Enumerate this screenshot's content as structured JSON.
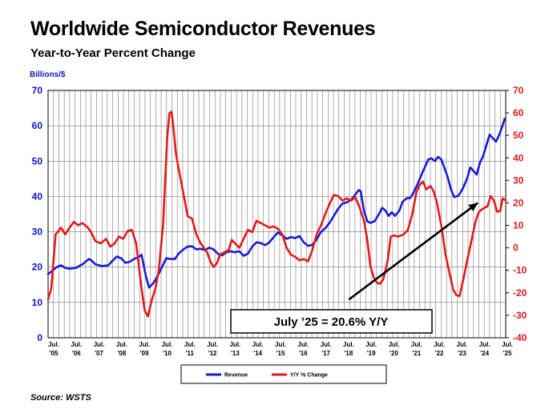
{
  "chart_data": {
    "type": "line",
    "title": "Worldwide Semiconductor Revenues",
    "subtitle": "Year-to-Year Percent Change",
    "ylabel": "Billions/$",
    "ylim": [
      0,
      70
    ],
    "y2lim": [
      -40,
      70
    ],
    "yticks": [
      0,
      10,
      20,
      30,
      40,
      50,
      60,
      70
    ],
    "y2ticks": [
      -40,
      -30,
      -20,
      -10,
      0,
      10,
      20,
      30,
      40,
      50,
      60,
      70
    ],
    "y2tick_labels": [
      "-40",
      "-30",
      "-20",
      "-10",
      "0",
      "10",
      "20",
      "30",
      "40",
      "50",
      "60",
      "70"
    ],
    "xtick_labels": [
      [
        "Jul.",
        "'05"
      ],
      [
        "Jul.",
        "'06"
      ],
      [
        "Jul.",
        "'07"
      ],
      [
        "Jul.",
        "'08"
      ],
      [
        "Jul.",
        "'09"
      ],
      [
        "Jul.",
        "'10"
      ],
      [
        "Jul.",
        "'11"
      ],
      [
        "Jul.",
        "'12"
      ],
      [
        "Jul.",
        "'13"
      ],
      [
        "Jul.",
        "'14"
      ],
      [
        "Jul.",
        "'15"
      ],
      [
        "Jul.",
        "'16"
      ],
      [
        "Jul.",
        "'17"
      ],
      [
        "Jul.",
        "'18"
      ],
      [
        "Jul.",
        "'19"
      ],
      [
        "Jul.",
        "'20"
      ],
      [
        "Jul.",
        "'21"
      ],
      [
        "Jul.",
        "'22"
      ],
      [
        "Jul.",
        "'23"
      ],
      [
        "Jul.",
        "'24"
      ],
      [
        "Jul.",
        "'25"
      ]
    ],
    "grid": true,
    "legend_position": "bottom",
    "source": "Source: WSTS",
    "annotation": "July ’25 = 20.6% Y/Y",
    "trend_arrow": {
      "from": [
        2019.0,
        -23
      ],
      "to": [
        2025.0,
        20
      ]
    },
    "series": [
      {
        "name": "Revenue",
        "axis": "left",
        "color": "#1a1ad6",
        "points": [
          [
            2005.0,
            18
          ],
          [
            2005.2,
            19
          ],
          [
            2005.4,
            20
          ],
          [
            2005.6,
            20.5
          ],
          [
            2005.8,
            19.8
          ],
          [
            2006.0,
            19.5
          ],
          [
            2006.3,
            19.8
          ],
          [
            2006.6,
            20.8
          ],
          [
            2006.9,
            22.3
          ],
          [
            2007.0,
            22
          ],
          [
            2007.2,
            20.8
          ],
          [
            2007.5,
            20.3
          ],
          [
            2007.8,
            20.5
          ],
          [
            2008.0,
            21.8
          ],
          [
            2008.2,
            23
          ],
          [
            2008.4,
            22.5
          ],
          [
            2008.6,
            21.2
          ],
          [
            2008.8,
            21.5
          ],
          [
            2009.0,
            22.3
          ],
          [
            2009.2,
            22.8
          ],
          [
            2009.35,
            23.5
          ],
          [
            2009.55,
            17.5
          ],
          [
            2009.7,
            14.2
          ],
          [
            2009.9,
            15.5
          ],
          [
            2010.1,
            17.5
          ],
          [
            2010.3,
            20
          ],
          [
            2010.5,
            22.5
          ],
          [
            2010.7,
            22.3
          ],
          [
            2010.9,
            22.3
          ],
          [
            2011.1,
            24
          ],
          [
            2011.3,
            25
          ],
          [
            2011.5,
            25.8
          ],
          [
            2011.7,
            25.9
          ],
          [
            2011.9,
            25
          ],
          [
            2012.1,
            25.2
          ],
          [
            2012.3,
            24.8
          ],
          [
            2012.5,
            25.5
          ],
          [
            2012.7,
            25
          ],
          [
            2012.9,
            23.8
          ],
          [
            2013.1,
            23.3
          ],
          [
            2013.3,
            24.2
          ],
          [
            2013.5,
            24.5
          ],
          [
            2013.7,
            24.2
          ],
          [
            2013.9,
            24.5
          ],
          [
            2014.1,
            23.2
          ],
          [
            2014.3,
            23.8
          ],
          [
            2014.5,
            25.8
          ],
          [
            2014.7,
            27
          ],
          [
            2014.9,
            26.8
          ],
          [
            2015.1,
            26.2
          ],
          [
            2015.3,
            27
          ],
          [
            2015.5,
            28.5
          ],
          [
            2015.7,
            29.8
          ],
          [
            2015.9,
            29
          ],
          [
            2016.1,
            28
          ],
          [
            2016.3,
            28.5
          ],
          [
            2016.5,
            28.2
          ],
          [
            2016.7,
            28.8
          ],
          [
            2016.9,
            27
          ],
          [
            2017.1,
            26
          ],
          [
            2017.3,
            26.3
          ],
          [
            2017.5,
            27.8
          ],
          [
            2017.7,
            30
          ],
          [
            2017.9,
            31
          ],
          [
            2018.1,
            32.5
          ],
          [
            2018.3,
            34.5
          ],
          [
            2018.5,
            36.5
          ],
          [
            2018.7,
            38
          ],
          [
            2018.9,
            38.3
          ],
          [
            2019.1,
            39
          ],
          [
            2019.3,
            40.5
          ],
          [
            2019.45,
            41.8
          ],
          [
            2019.55,
            41.5
          ],
          [
            2019.7,
            36
          ],
          [
            2019.85,
            33
          ],
          [
            2020.0,
            32.5
          ],
          [
            2020.2,
            33
          ],
          [
            2020.4,
            35
          ],
          [
            2020.55,
            36.8
          ],
          [
            2020.7,
            36
          ],
          [
            2020.85,
            34.5
          ],
          [
            2021.0,
            35.5
          ],
          [
            2021.15,
            34.5
          ],
          [
            2021.35,
            36
          ],
          [
            2021.5,
            38.5
          ],
          [
            2021.7,
            39.5
          ],
          [
            2021.85,
            39.5
          ],
          [
            2022.0,
            41
          ],
          [
            2022.2,
            43.5
          ],
          [
            2022.4,
            46.5
          ],
          [
            2022.55,
            48.5
          ],
          [
            2022.7,
            50.5
          ],
          [
            2022.85,
            50.8
          ],
          [
            2023.0,
            50
          ],
          [
            2023.15,
            51.2
          ],
          [
            2023.3,
            50.5
          ],
          [
            2023.45,
            48
          ],
          [
            2023.6,
            45.5
          ],
          [
            2023.75,
            42
          ],
          [
            2023.9,
            39.8
          ],
          [
            2024.1,
            40.2
          ],
          [
            2024.3,
            42.2
          ],
          [
            2024.5,
            45
          ],
          [
            2024.65,
            48.2
          ],
          [
            2024.8,
            47.2
          ],
          [
            2024.95,
            46.2
          ],
          [
            2025.1,
            49.5
          ],
          [
            2025.25,
            51.5
          ],
          [
            2025.4,
            54.5
          ],
          [
            2025.55,
            57.5
          ],
          [
            2025.7,
            56.5
          ],
          [
            2025.85,
            55.5
          ],
          [
            2026.0,
            57.5
          ],
          [
            2026.15,
            60
          ],
          [
            2026.25,
            62
          ]
        ]
      },
      {
        "name": "Y/Y % Change",
        "axis": "right",
        "color": "#e31b1b",
        "points": [
          [
            2005.0,
            -23
          ],
          [
            2005.15,
            -18
          ],
          [
            2005.35,
            6
          ],
          [
            2005.6,
            9
          ],
          [
            2005.8,
            6
          ],
          [
            2006.0,
            9
          ],
          [
            2006.2,
            11.5
          ],
          [
            2006.4,
            10
          ],
          [
            2006.6,
            11
          ],
          [
            2006.85,
            9
          ],
          [
            2007.0,
            7
          ],
          [
            2007.2,
            3
          ],
          [
            2007.45,
            2
          ],
          [
            2007.7,
            4
          ],
          [
            2007.9,
            0.5
          ],
          [
            2008.1,
            2
          ],
          [
            2008.3,
            5
          ],
          [
            2008.5,
            4
          ],
          [
            2008.7,
            7.5
          ],
          [
            2008.9,
            8
          ],
          [
            2009.1,
            2
          ],
          [
            2009.35,
            -18
          ],
          [
            2009.5,
            -28
          ],
          [
            2009.65,
            -30.5
          ],
          [
            2009.8,
            -24
          ],
          [
            2010.0,
            -18
          ],
          [
            2010.15,
            -10
          ],
          [
            2010.35,
            10
          ],
          [
            2010.55,
            50
          ],
          [
            2010.65,
            60
          ],
          [
            2010.75,
            60.5
          ],
          [
            2010.85,
            52
          ],
          [
            2010.95,
            42
          ],
          [
            2011.1,
            34
          ],
          [
            2011.3,
            24
          ],
          [
            2011.5,
            14
          ],
          [
            2011.7,
            13
          ],
          [
            2011.9,
            6
          ],
          [
            2012.1,
            2
          ],
          [
            2012.25,
            0
          ],
          [
            2012.4,
            -2
          ],
          [
            2012.55,
            -6
          ],
          [
            2012.7,
            -8.5
          ],
          [
            2012.85,
            -7
          ],
          [
            2013.0,
            -3
          ],
          [
            2013.2,
            -2
          ],
          [
            2013.4,
            -1
          ],
          [
            2013.55,
            3.5
          ],
          [
            2013.7,
            2
          ],
          [
            2013.9,
            0
          ],
          [
            2014.1,
            4
          ],
          [
            2014.3,
            8
          ],
          [
            2014.5,
            7
          ],
          [
            2014.7,
            12
          ],
          [
            2014.9,
            11
          ],
          [
            2015.1,
            10
          ],
          [
            2015.3,
            9
          ],
          [
            2015.5,
            9.5
          ],
          [
            2015.7,
            8.5
          ],
          [
            2015.9,
            6
          ],
          [
            2016.1,
            0
          ],
          [
            2016.3,
            -3
          ],
          [
            2016.5,
            -4
          ],
          [
            2016.7,
            -5.5
          ],
          [
            2016.9,
            -5
          ],
          [
            2017.1,
            -6
          ],
          [
            2017.3,
            -1
          ],
          [
            2017.5,
            6
          ],
          [
            2017.7,
            10
          ],
          [
            2017.9,
            15
          ],
          [
            2018.1,
            19.5
          ],
          [
            2018.3,
            23.5
          ],
          [
            2018.5,
            23
          ],
          [
            2018.7,
            21
          ],
          [
            2018.9,
            22
          ],
          [
            2019.1,
            21
          ],
          [
            2019.3,
            22.5
          ],
          [
            2019.5,
            18
          ],
          [
            2019.7,
            12
          ],
          [
            2019.85,
            4
          ],
          [
            2020.0,
            -8
          ],
          [
            2020.15,
            -13
          ],
          [
            2020.3,
            -15.5
          ],
          [
            2020.45,
            -16
          ],
          [
            2020.6,
            -14
          ],
          [
            2020.8,
            -6
          ],
          [
            2020.95,
            5
          ],
          [
            2021.1,
            5.5
          ],
          [
            2021.3,
            5
          ],
          [
            2021.55,
            6
          ],
          [
            2021.75,
            8
          ],
          [
            2021.95,
            15
          ],
          [
            2022.15,
            25
          ],
          [
            2022.3,
            28
          ],
          [
            2022.45,
            29.5
          ],
          [
            2022.6,
            26
          ],
          [
            2022.8,
            27.5
          ],
          [
            2022.95,
            25
          ],
          [
            2023.1,
            20
          ],
          [
            2023.3,
            10
          ],
          [
            2023.5,
            -3
          ],
          [
            2023.7,
            -12
          ],
          [
            2023.85,
            -18.5
          ],
          [
            2024.0,
            -21
          ],
          [
            2024.15,
            -21.5
          ],
          [
            2024.35,
            -13
          ],
          [
            2024.5,
            -6
          ],
          [
            2024.7,
            3
          ],
          [
            2024.9,
            12
          ],
          [
            2025.05,
            16
          ],
          [
            2025.25,
            17.5
          ],
          [
            2025.45,
            18.5
          ],
          [
            2025.6,
            23
          ],
          [
            2025.75,
            21
          ],
          [
            2025.9,
            16
          ],
          [
            2026.05,
            16.5
          ],
          [
            2026.15,
            22
          ],
          [
            2026.3,
            21
          ]
        ]
      }
    ]
  }
}
